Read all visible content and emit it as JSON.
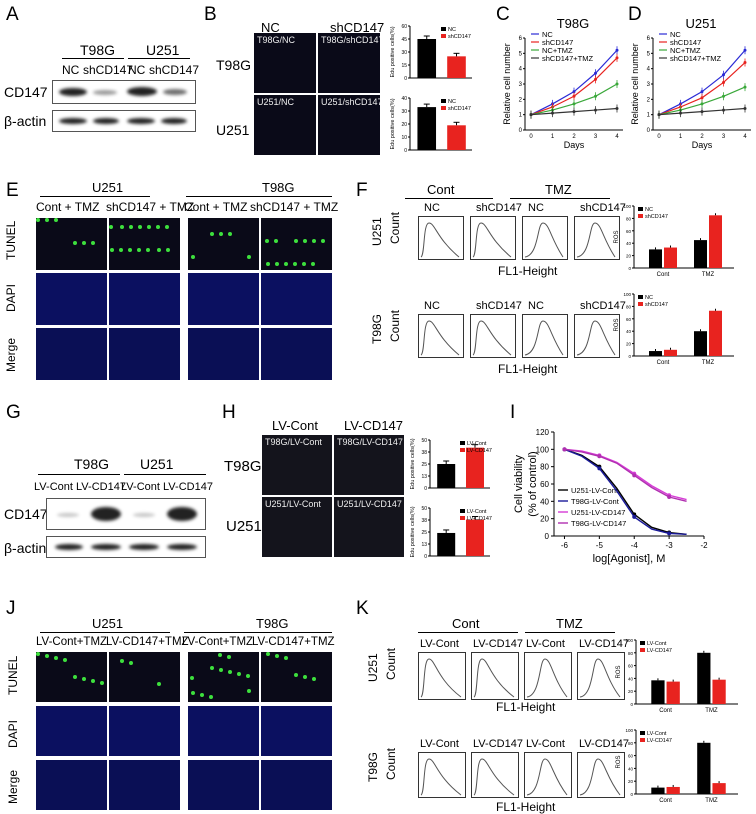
{
  "panels": {
    "A": {
      "label": "A",
      "groups": [
        "T98G",
        "U251"
      ],
      "lanes": [
        "NC",
        "shCD147",
        "NC",
        "shCD147"
      ],
      "rows": [
        "CD147",
        "β-actin"
      ]
    },
    "B": {
      "label": "B",
      "cols": [
        "NC",
        "shCD147"
      ],
      "rows": [
        "T98G",
        "U251"
      ],
      "images": [
        "T98G/NC",
        "T98G/shCD147",
        "U251/NC",
        "U251/shCD147"
      ],
      "ylabel": "Edu positive cells(%)",
      "legend": [
        "NC",
        "shCD147"
      ]
    },
    "C": {
      "label": "C",
      "title": "T98G",
      "xlabel": "Days",
      "ylabel": "Relative cell number"
    },
    "D": {
      "label": "D",
      "title": "U251",
      "xlabel": "Days",
      "ylabel": "Relative cell number"
    },
    "E": {
      "label": "E",
      "groups": [
        "U251",
        "T98G"
      ],
      "cols": [
        "Cont + TMZ",
        "shCD147 + TMZ",
        "Cont + TMZ",
        "shCD147 + TMZ"
      ],
      "rows": [
        "TUNEL",
        "DAPI",
        "Merge"
      ]
    },
    "F": {
      "label": "F",
      "groups": [
        "Cont",
        "TMZ"
      ],
      "cols": [
        "NC",
        "shCD147",
        "NC",
        "shCD147"
      ],
      "rows": [
        "U251",
        "T98G"
      ],
      "ylabel": "Count",
      "xlabel": "FL1-Height",
      "bar_ylabel": "ROS",
      "bar_cats": [
        "Cont",
        "TMZ"
      ],
      "legend": [
        "NC",
        "shCD147"
      ]
    },
    "G": {
      "label": "G",
      "groups": [
        "T98G",
        "U251"
      ],
      "lanes": [
        "LV-Cont",
        "LV-CD147",
        "LV-Cont",
        "LV-CD147"
      ],
      "rows": [
        "CD147",
        "β-actin"
      ]
    },
    "H": {
      "label": "H",
      "cols": [
        "LV-Cont",
        "LV-CD147"
      ],
      "rows": [
        "T98G",
        "U251"
      ],
      "images": [
        "T98G/LV-Cont",
        "T98G/LV-CD147",
        "U251/LV-Cont",
        "U251/LV-CD147"
      ],
      "ylabel": "Edu positive cells(%)",
      "legend": [
        "LV-Cont",
        "LV-CD147"
      ]
    },
    "I": {
      "label": "I",
      "ylabel1": "Cell viability",
      "ylabel2": "(% of control)",
      "xlabel": "log[Agonist], M",
      "legend": [
        "U251-LV-Cont",
        "T98G-LV-Cont",
        "U251-LV-CD147",
        "T98G-LV-CD147"
      ]
    },
    "J": {
      "label": "J",
      "groups": [
        "U251",
        "T98G"
      ],
      "cols": [
        "LV-Cont+TMZ",
        "LV-CD147+TMZ",
        "LV-Cont+TMZ",
        "LV-CD147+TMZ"
      ],
      "rows": [
        "TUNEL",
        "DAPI",
        "Merge"
      ]
    },
    "K": {
      "label": "K",
      "groups": [
        "Cont",
        "TMZ"
      ],
      "cols": [
        "LV-Cont",
        "LV-CD147",
        "LV-Cont",
        "LV-CD147"
      ],
      "rows": [
        "U251",
        "T98G"
      ],
      "ylabel": "Count",
      "xlabel": "FL1-Height",
      "bar_ylabel": "ROS",
      "bar_cats": [
        "Cont",
        "TMZ"
      ],
      "legend": [
        "LV-Cont",
        "LV-CD147"
      ]
    }
  },
  "colors": {
    "black": "#000000",
    "red": "#e8231f",
    "blue": "#2b2bd6",
    "magenta": "#d63cd6",
    "green": "#3aa83a"
  },
  "chart_data": [
    {
      "type": "bar",
      "panel": "B-T98G",
      "categories": [
        "NC",
        "shCD147"
      ],
      "values": [
        45,
        25
      ],
      "ylim": [
        0,
        60
      ],
      "ylabel": "Edu positive cells(%)"
    },
    {
      "type": "bar",
      "panel": "B-U251",
      "categories": [
        "NC",
        "shCD147"
      ],
      "values": [
        33,
        19
      ],
      "ylim": [
        0,
        40
      ],
      "ylabel": "Edu positive cells(%)"
    },
    {
      "type": "line",
      "panel": "C",
      "title": "T98G",
      "x": [
        0,
        1,
        2,
        3,
        4
      ],
      "xlabel": "Days",
      "ylabel": "Relative cell number",
      "ylim": [
        0,
        6
      ],
      "series": [
        {
          "name": "NC",
          "values": [
            1,
            1.7,
            2.5,
            3.7,
            5.2
          ]
        },
        {
          "name": "shCD147",
          "values": [
            1,
            1.5,
            2.2,
            3.3,
            4.7
          ]
        },
        {
          "name": "NC+TMZ",
          "values": [
            1,
            1.3,
            1.7,
            2.2,
            3.0
          ]
        },
        {
          "name": "shCD147+TMZ",
          "values": [
            1,
            1.1,
            1.2,
            1.3,
            1.4
          ]
        }
      ]
    },
    {
      "type": "line",
      "panel": "D",
      "title": "U251",
      "x": [
        0,
        1,
        2,
        3,
        4
      ],
      "xlabel": "Days",
      "ylabel": "Relative cell number",
      "ylim": [
        0,
        6
      ],
      "series": [
        {
          "name": "NC",
          "values": [
            1,
            1.7,
            2.5,
            3.6,
            5.2
          ]
        },
        {
          "name": "shCD147",
          "values": [
            1,
            1.5,
            2.1,
            3.1,
            4.4
          ]
        },
        {
          "name": "NC+TMZ",
          "values": [
            1,
            1.3,
            1.7,
            2.2,
            2.8
          ]
        },
        {
          "name": "shCD147+TMZ",
          "values": [
            1,
            1.1,
            1.2,
            1.3,
            1.4
          ]
        }
      ]
    },
    {
      "type": "bar",
      "panel": "F-U251",
      "categories": [
        "Cont",
        "TMZ"
      ],
      "series": [
        {
          "name": "NC",
          "values": [
            30,
            45
          ]
        },
        {
          "name": "shCD147",
          "values": [
            33,
            85
          ]
        }
      ],
      "ylim": [
        0,
        100
      ],
      "ylabel": "ROS"
    },
    {
      "type": "bar",
      "panel": "F-T98G",
      "categories": [
        "Cont",
        "TMZ"
      ],
      "series": [
        {
          "name": "NC",
          "values": [
            8,
            40
          ]
        },
        {
          "name": "shCD147",
          "values": [
            10,
            73
          ]
        }
      ],
      "ylim": [
        0,
        100
      ],
      "ylabel": "ROS"
    },
    {
      "type": "bar",
      "panel": "H-T98G",
      "categories": [
        "LV-Cont",
        "LV-CD147"
      ],
      "values": [
        25,
        42
      ],
      "ylim": [
        0,
        50
      ],
      "ylabel": "Edu positive cells(%)"
    },
    {
      "type": "bar",
      "panel": "H-U251",
      "categories": [
        "LV-Cont",
        "LV-CD147"
      ],
      "values": [
        24,
        38
      ],
      "ylim": [
        0,
        50
      ],
      "ylabel": "Edu positive cells(%)"
    },
    {
      "type": "line",
      "panel": "I",
      "x": [
        -6,
        -5.5,
        -5,
        -4.5,
        -4,
        -3.5,
        -3,
        -2.5
      ],
      "xlabel": "log[Agonist], M",
      "ylabel": "Cell viability (% of control)",
      "ylim": [
        0,
        120
      ],
      "xlim": [
        -6.3,
        -2
      ],
      "series": [
        {
          "name": "U251-LV-Cont",
          "values": [
            100,
            93,
            80,
            55,
            25,
            10,
            4,
            2
          ]
        },
        {
          "name": "T98G-LV-Cont",
          "values": [
            100,
            92,
            78,
            52,
            22,
            8,
            3,
            2
          ]
        },
        {
          "name": "U251-LV-CD147",
          "values": [
            100,
            98,
            93,
            85,
            72,
            58,
            47,
            42
          ]
        },
        {
          "name": "T98G-LV-CD147",
          "values": [
            100,
            97,
            92,
            84,
            70,
            56,
            45,
            40
          ]
        }
      ]
    },
    {
      "type": "bar",
      "panel": "K-U251",
      "categories": [
        "Cont",
        "TMZ"
      ],
      "series": [
        {
          "name": "LV-Cont",
          "values": [
            37,
            80
          ]
        },
        {
          "name": "LV-CD147",
          "values": [
            35,
            38
          ]
        }
      ],
      "ylim": [
        0,
        100
      ],
      "ylabel": "ROS"
    },
    {
      "type": "bar",
      "panel": "K-T98G",
      "categories": [
        "Cont",
        "TMZ"
      ],
      "series": [
        {
          "name": "LV-Cont",
          "values": [
            10,
            80
          ]
        },
        {
          "name": "LV-CD147",
          "values": [
            11,
            17
          ]
        }
      ],
      "ylim": [
        0,
        100
      ],
      "ylabel": "ROS"
    }
  ]
}
